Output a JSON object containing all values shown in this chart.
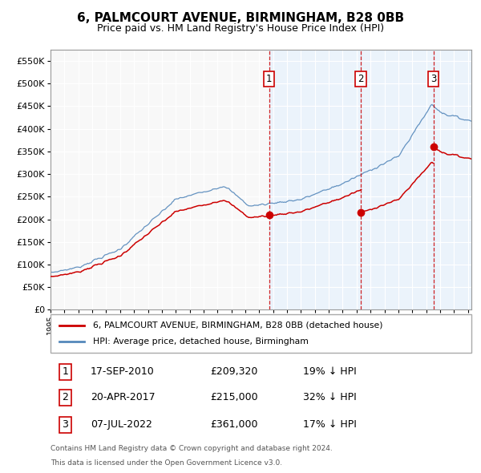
{
  "title": "6, PALMCOURT AVENUE, BIRMINGHAM, B28 0BB",
  "subtitle": "Price paid vs. HM Land Registry's House Price Index (HPI)",
  "ylim": [
    0,
    575000
  ],
  "yticks": [
    0,
    50000,
    100000,
    150000,
    200000,
    250000,
    300000,
    350000,
    400000,
    450000,
    500000,
    550000
  ],
  "background_color": "#ffffff",
  "plot_bg_color": "#f5f5f5",
  "shade_color": "#ddeeff",
  "grid_color": "#cccccc",
  "sale_prices": [
    209320,
    215000,
    361000
  ],
  "sale_labels": [
    "1",
    "2",
    "3"
  ],
  "sale_pct": [
    "19% ↓ HPI",
    "32% ↓ HPI",
    "17% ↓ HPI"
  ],
  "sale_date_labels": [
    "17-SEP-2010",
    "20-APR-2017",
    "07-JUL-2022"
  ],
  "legend_entries": [
    "6, PALMCOURT AVENUE, BIRMINGHAM, B28 0BB (detached house)",
    "HPI: Average price, detached house, Birmingham"
  ],
  "footnote1": "Contains HM Land Registry data © Crown copyright and database right 2024.",
  "footnote2": "This data is licensed under the Open Government Licence v3.0.",
  "line_color_red": "#cc0000",
  "line_color_blue": "#5588bb",
  "vline_color": "#cc0000",
  "box_color": "#cc0000",
  "title_fontsize": 11,
  "subtitle_fontsize": 9
}
